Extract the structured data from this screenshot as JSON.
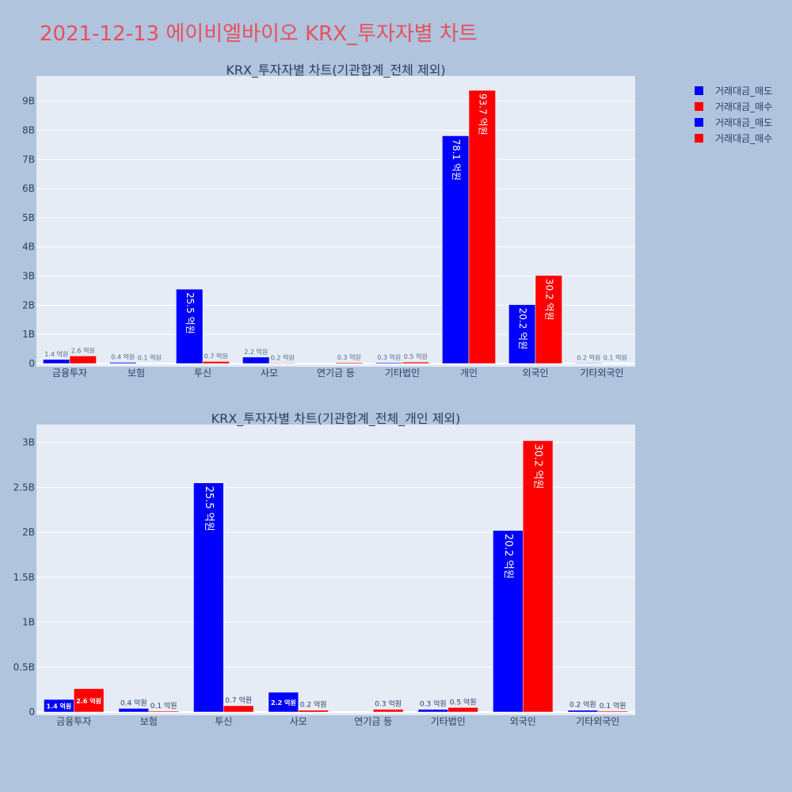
{
  "page": {
    "title": "2021-12-13 에이비엘바이오 KRX_투자자별 차트"
  },
  "colors": {
    "sell": "#0000ff",
    "buy": "#ff0000",
    "plot_bg": "#e5ecf6",
    "page_bg": "#b0c4de",
    "grid": "#ffffff",
    "title": "#e8505b"
  },
  "legend": {
    "entries": [
      "거래대금_매도",
      "거래대금_매수",
      "거래대금_매도",
      "거래대금_매수"
    ],
    "placement": "top-right"
  },
  "chart_data": [
    {
      "type": "bar",
      "title": "KRX_투자자별 차트(기관합계_전체 제외)",
      "categories": [
        "금융투자",
        "보험",
        "투신",
        "사모",
        "연기금 등",
        "기타법인",
        "개인",
        "외국인",
        "기타외국인"
      ],
      "series": [
        {
          "name": "거래대금_매도",
          "values": [
            0.14,
            0.04,
            2.55,
            0.22,
            0,
            0.03,
            7.81,
            2.02,
            0.02
          ],
          "labels": [
            "1.4 억원",
            "0.4 억원",
            "25.5 억원",
            "2.2 억원",
            "",
            "0.3 억원",
            "78.1 억원",
            "20.2 억원",
            "0.2 억원"
          ]
        },
        {
          "name": "거래대금_매수",
          "values": [
            0.26,
            0.01,
            0.07,
            0.02,
            0.03,
            0.05,
            9.37,
            3.02,
            0.01
          ],
          "labels": [
            "2.6 억원",
            "0.1 억원",
            "0.7 억원",
            "0.2 억원",
            "0.3 억원",
            "0.5 억원",
            "93.7 억원",
            "30.2 억원",
            "0.1 억원"
          ]
        }
      ],
      "y_ticks": [
        0,
        1,
        2,
        3,
        4,
        5,
        6,
        7,
        8,
        9
      ],
      "y_tick_labels": [
        "0",
        "1B",
        "2B",
        "3B",
        "4B",
        "5B",
        "6B",
        "7B",
        "8B",
        "9B"
      ],
      "ylim": [
        0,
        9.86
      ],
      "ylabel": "",
      "xlabel": "",
      "grid": true
    },
    {
      "type": "bar",
      "title": "KRX_투자자별 차트(기관합계_전체_개인 제외)",
      "categories": [
        "금융투자",
        "보험",
        "투신",
        "사모",
        "연기금 등",
        "기타법인",
        "외국인",
        "기타외국인"
      ],
      "series": [
        {
          "name": "거래대금_매도",
          "values": [
            0.14,
            0.04,
            2.55,
            0.22,
            0,
            0.03,
            2.02,
            0.02
          ],
          "labels": [
            "1.4 억원",
            "0.4 억원",
            "25.5 억원",
            "2.2 억원",
            "",
            "0.3 억원",
            "20.2 억원",
            "0.2 억원"
          ]
        },
        {
          "name": "거래대금_매수",
          "values": [
            0.26,
            0.01,
            0.07,
            0.02,
            0.03,
            0.05,
            3.02,
            0.01
          ],
          "labels": [
            "2.6 억원",
            "0.1 억원",
            "0.7 억원",
            "0.2 억원",
            "0.3 억원",
            "0.5 억원",
            "30.2 억원",
            "0.1 억원"
          ]
        }
      ],
      "y_ticks": [
        0,
        0.5,
        1,
        1.5,
        2,
        2.5,
        3
      ],
      "y_tick_labels": [
        "0",
        "0.5B",
        "1B",
        "1.5B",
        "2B",
        "2.5B",
        "3B"
      ],
      "ylim": [
        0,
        3.2
      ],
      "ylabel": "",
      "xlabel": "",
      "grid": true
    }
  ]
}
